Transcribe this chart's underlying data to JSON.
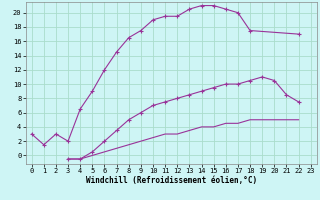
{
  "xlabel": "Windchill (Refroidissement éolien,°C)",
  "background_color": "#cef5f5",
  "grid_color": "#aaddcc",
  "line_color": "#993399",
  "xlim": [
    -0.5,
    23.5
  ],
  "ylim": [
    -1.2,
    21.5
  ],
  "xticks": [
    0,
    1,
    2,
    3,
    4,
    5,
    6,
    7,
    8,
    9,
    10,
    11,
    12,
    13,
    14,
    15,
    16,
    17,
    18,
    19,
    20,
    21,
    22,
    23
  ],
  "yticks": [
    0,
    2,
    4,
    6,
    8,
    10,
    12,
    14,
    16,
    18,
    20
  ],
  "line1_x": [
    0,
    1,
    2,
    3,
    4,
    5,
    6,
    7,
    8,
    9,
    10,
    11,
    12,
    13,
    14,
    15,
    16,
    17,
    18,
    22
  ],
  "line1_y": [
    3,
    1.5,
    3,
    2,
    6.5,
    9,
    12,
    14.5,
    16.5,
    17.5,
    19,
    19.5,
    19.5,
    20.5,
    21,
    21,
    20.5,
    20,
    17.5,
    17
  ],
  "line2_x": [
    3,
    4,
    5,
    6,
    7,
    8,
    9,
    10,
    11,
    12,
    13,
    14,
    15,
    16,
    17,
    18,
    19,
    20,
    21,
    22
  ],
  "line2_y": [
    -0.5,
    -0.5,
    0.5,
    2,
    3.5,
    5,
    6,
    7,
    7.5,
    8,
    8.5,
    9,
    9.5,
    10,
    10,
    10.5,
    11,
    10.5,
    8.5,
    7.5
  ],
  "line3_x": [
    3,
    4,
    5,
    6,
    7,
    8,
    9,
    10,
    11,
    12,
    13,
    14,
    15,
    16,
    17,
    18,
    19,
    20,
    21,
    22
  ],
  "line3_y": [
    -0.5,
    -0.5,
    0,
    0.5,
    1,
    1.5,
    2,
    2.5,
    3,
    3,
    3.5,
    4,
    4,
    4.5,
    4.5,
    5,
    5,
    5,
    5,
    5
  ]
}
